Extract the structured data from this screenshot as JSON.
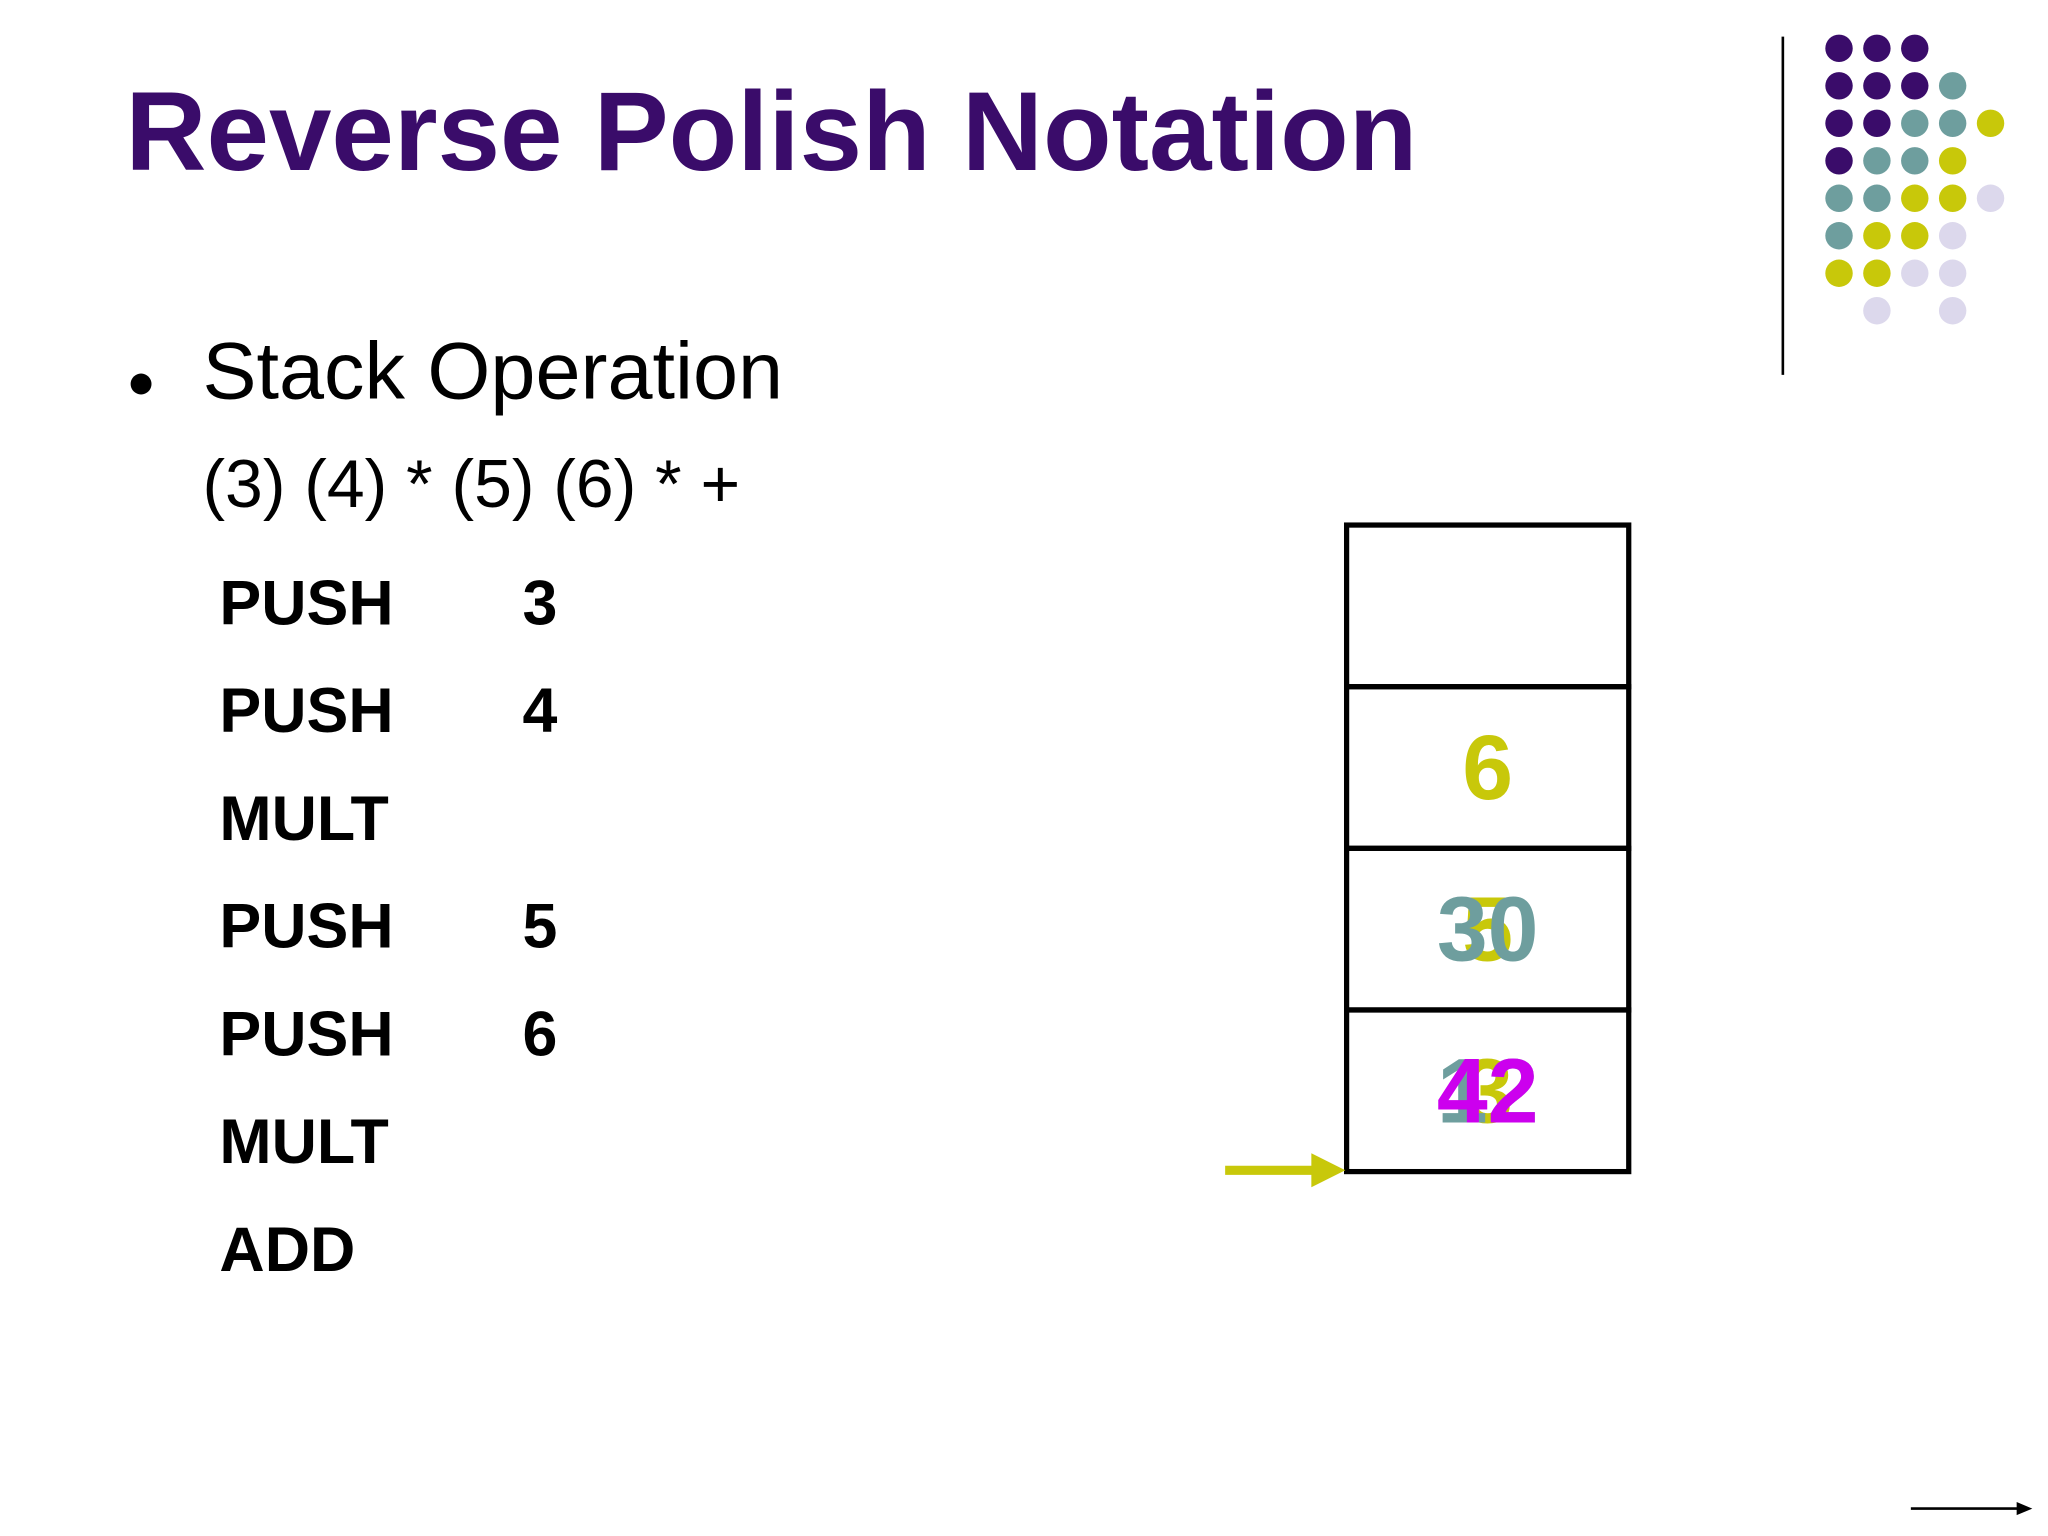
{
  "title": "Reverse Polish Notation",
  "bullet": "Stack Operation",
  "expression": "(3) (4) * (5) (6) * +",
  "instructions": [
    {
      "op": "PUSH",
      "arg": "3"
    },
    {
      "op": "PUSH",
      "arg": "4"
    },
    {
      "op": "MULT"
    },
    {
      "op": "PUSH",
      "arg": "5"
    },
    {
      "op": "PUSH",
      "arg": "6"
    },
    {
      "op": "MULT"
    },
    {
      "op": "ADD"
    }
  ],
  "stack": [
    {
      "entries": []
    },
    {
      "entries": [
        "6"
      ]
    },
    {
      "entries": [
        "5",
        "30"
      ]
    },
    {
      "entries": [
        "3",
        "12",
        "42"
      ]
    }
  ]
}
